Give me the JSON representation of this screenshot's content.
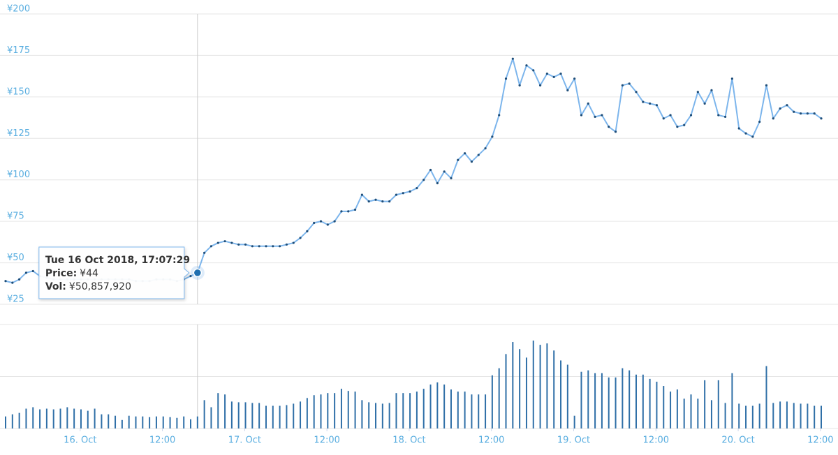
{
  "chart_data": {
    "type": "line",
    "x": [
      "2018-10-15T13:07",
      "2018-10-15T14:07",
      "2018-10-15T15:07",
      "2018-10-15T16:07",
      "2018-10-15T17:07",
      "2018-10-15T18:07",
      "2018-10-15T19:07",
      "2018-10-15T20:07",
      "2018-10-15T21:07",
      "2018-10-15T22:07",
      "2018-10-15T23:07",
      "2018-10-16T00:07",
      "2018-10-16T01:07",
      "2018-10-16T02:07",
      "2018-10-16T03:07",
      "2018-10-16T04:07",
      "2018-10-16T05:07",
      "2018-10-16T06:07",
      "2018-10-16T07:07",
      "2018-10-16T08:07",
      "2018-10-16T09:07",
      "2018-10-16T10:07",
      "2018-10-16T11:07",
      "2018-10-16T12:07",
      "2018-10-16T13:07",
      "2018-10-16T14:07",
      "2018-10-16T15:07",
      "2018-10-16T16:07",
      "2018-10-16T17:07",
      "2018-10-16T18:07",
      "2018-10-16T19:07",
      "2018-10-16T20:07",
      "2018-10-16T21:07",
      "2018-10-16T22:07",
      "2018-10-16T23:07",
      "2018-10-17T00:07",
      "2018-10-17T01:07",
      "2018-10-17T02:07",
      "2018-10-17T03:07",
      "2018-10-17T04:07",
      "2018-10-17T05:07",
      "2018-10-17T06:07",
      "2018-10-17T07:07",
      "2018-10-17T08:07",
      "2018-10-17T09:07",
      "2018-10-17T10:07",
      "2018-10-17T11:07",
      "2018-10-17T12:07",
      "2018-10-17T13:07",
      "2018-10-17T14:07",
      "2018-10-17T15:07",
      "2018-10-17T16:07",
      "2018-10-17T17:07",
      "2018-10-17T18:07",
      "2018-10-17T19:07",
      "2018-10-17T20:07",
      "2018-10-17T21:07",
      "2018-10-17T22:07",
      "2018-10-17T23:07",
      "2018-10-18T00:07",
      "2018-10-18T01:07",
      "2018-10-18T02:07",
      "2018-10-18T03:07",
      "2018-10-18T04:07",
      "2018-10-18T05:07",
      "2018-10-18T06:07",
      "2018-10-18T07:07",
      "2018-10-18T08:07",
      "2018-10-18T09:07",
      "2018-10-18T10:07",
      "2018-10-18T11:07",
      "2018-10-18T12:07",
      "2018-10-18T13:07",
      "2018-10-18T14:07",
      "2018-10-18T15:07",
      "2018-10-18T16:07",
      "2018-10-18T17:07",
      "2018-10-18T18:07",
      "2018-10-18T19:07",
      "2018-10-18T20:07",
      "2018-10-18T21:07",
      "2018-10-18T22:07",
      "2018-10-18T23:07",
      "2018-10-19T00:07",
      "2018-10-19T01:07",
      "2018-10-19T02:07",
      "2018-10-19T03:07",
      "2018-10-19T04:07",
      "2018-10-19T05:07",
      "2018-10-19T06:07",
      "2018-10-19T07:07",
      "2018-10-19T08:07",
      "2018-10-19T09:07",
      "2018-10-19T10:07",
      "2018-10-19T11:07",
      "2018-10-19T12:07",
      "2018-10-19T13:07",
      "2018-10-19T14:07",
      "2018-10-19T15:07",
      "2018-10-19T16:07",
      "2018-10-19T17:07",
      "2018-10-19T18:07",
      "2018-10-19T19:07",
      "2018-10-19T20:07",
      "2018-10-19T21:07",
      "2018-10-19T22:07",
      "2018-10-19T23:07",
      "2018-10-20T00:07",
      "2018-10-20T01:07",
      "2018-10-20T02:07",
      "2018-10-20T03:07",
      "2018-10-20T04:07",
      "2018-10-20T05:07",
      "2018-10-20T06:07",
      "2018-10-20T07:07",
      "2018-10-20T08:07",
      "2018-10-20T09:07",
      "2018-10-20T10:07",
      "2018-10-20T11:07",
      "2018-10-20T12:07"
    ],
    "series": [
      {
        "type": "line",
        "color": "#7cb5ec",
        "marker_color": "#1f4e79",
        "values": [
          39,
          38,
          40,
          44,
          45,
          42,
          41,
          40,
          40,
          40,
          40,
          40,
          40,
          40,
          40,
          40,
          40,
          40,
          40,
          39,
          39,
          39,
          40,
          40,
          40,
          39,
          40,
          42,
          44,
          56,
          60,
          62,
          63,
          62,
          61,
          61,
          60,
          60,
          60,
          60,
          60,
          61,
          62,
          65,
          69,
          74,
          75,
          73,
          75,
          81,
          81,
          82,
          91,
          87,
          88,
          87,
          87,
          91,
          92,
          93,
          95,
          100,
          106,
          98,
          105,
          101,
          112,
          116,
          111,
          115,
          119,
          126,
          139,
          161,
          173,
          157,
          169,
          166,
          157,
          164,
          162,
          164,
          154,
          161,
          139,
          146,
          138,
          139,
          132,
          129,
          157,
          158,
          153,
          147,
          146,
          145,
          137,
          139,
          132,
          133,
          139,
          153,
          146,
          154,
          139,
          138,
          161,
          131,
          128,
          126,
          135,
          157,
          137,
          143,
          145,
          141,
          140,
          140,
          140,
          137
        ]
      },
      {
        "type": "bar",
        "axis": "y2",
        "color": "#2f6fa7",
        "values": [
          51000000,
          60000000,
          66000000,
          84000000,
          90000000,
          81000000,
          84000000,
          81000000,
          84000000,
          90000000,
          84000000,
          81000000,
          75000000,
          84000000,
          60000000,
          60000000,
          54000000,
          36000000,
          54000000,
          51000000,
          51000000,
          48000000,
          51000000,
          51000000,
          48000000,
          45000000,
          51000000,
          39000000,
          50857920,
          120000000,
          90000000,
          150000000,
          144000000,
          114000000,
          111000000,
          111000000,
          108000000,
          108000000,
          96000000,
          96000000,
          96000000,
          99000000,
          105000000,
          114000000,
          129000000,
          141000000,
          144000000,
          150000000,
          150000000,
          168000000,
          159000000,
          156000000,
          120000000,
          111000000,
          108000000,
          105000000,
          108000000,
          150000000,
          150000000,
          150000000,
          156000000,
          168000000,
          186000000,
          195000000,
          186000000,
          165000000,
          156000000,
          156000000,
          144000000,
          144000000,
          144000000,
          225000000,
          255000000,
          315000000,
          366000000,
          336000000,
          300000000,
          372000000,
          354000000,
          360000000,
          330000000,
          288000000,
          270000000,
          54000000,
          240000000,
          246000000,
          234000000,
          234000000,
          216000000,
          216000000,
          255000000,
          246000000,
          228000000,
          228000000,
          210000000,
          198000000,
          180000000,
          156000000,
          165000000,
          126000000,
          144000000,
          126000000,
          204000000,
          120000000,
          204000000,
          108000000,
          234000000,
          105000000,
          96000000,
          96000000,
          105000000,
          264000000,
          108000000,
          114000000,
          114000000,
          108000000,
          105000000,
          105000000,
          96000000,
          96000000
        ]
      }
    ],
    "xlim": [
      "2018-10-15T13:07",
      "2018-10-20T12:07"
    ],
    "xticks": [
      {
        "value": "2018-10-16T00:00",
        "label": "16. Oct"
      },
      {
        "value": "2018-10-16T12:00",
        "label": "12:00"
      },
      {
        "value": "2018-10-17T00:00",
        "label": "17. Oct"
      },
      {
        "value": "2018-10-17T12:00",
        "label": "12:00"
      },
      {
        "value": "2018-10-18T00:00",
        "label": "18. Oct"
      },
      {
        "value": "2018-10-18T12:00",
        "label": "12:00"
      },
      {
        "value": "2018-10-19T00:00",
        "label": "19. Oct"
      },
      {
        "value": "2018-10-19T12:00",
        "label": "12:00"
      },
      {
        "value": "2018-10-20T00:00",
        "label": "20. Oct"
      },
      {
        "value": "2018-10-20T12:00",
        "label": "12:00"
      }
    ],
    "ylim": [
      25,
      200
    ],
    "yticks": [
      {
        "value": 25,
        "label": "¥25"
      },
      {
        "value": 50,
        "label": "¥50"
      },
      {
        "value": 75,
        "label": "¥75"
      },
      {
        "value": 100,
        "label": "¥100"
      },
      {
        "value": 125,
        "label": "¥125"
      },
      {
        "value": 150,
        "label": "¥150"
      },
      {
        "value": 175,
        "label": "¥175"
      },
      {
        "value": 200,
        "label": "¥200"
      }
    ],
    "y2lim": [
      0,
      440000000
    ],
    "y2ticks": [
      0,
      220000000,
      440000000
    ],
    "grid": true,
    "tooltip": {
      "index": 28,
      "title": "Tue 16 Oct 2018, 17:07:29",
      "items": [
        {
          "label": "Price:",
          "value": "¥44"
        },
        {
          "label": "Vol:",
          "value": "¥50,857,920"
        }
      ]
    }
  }
}
